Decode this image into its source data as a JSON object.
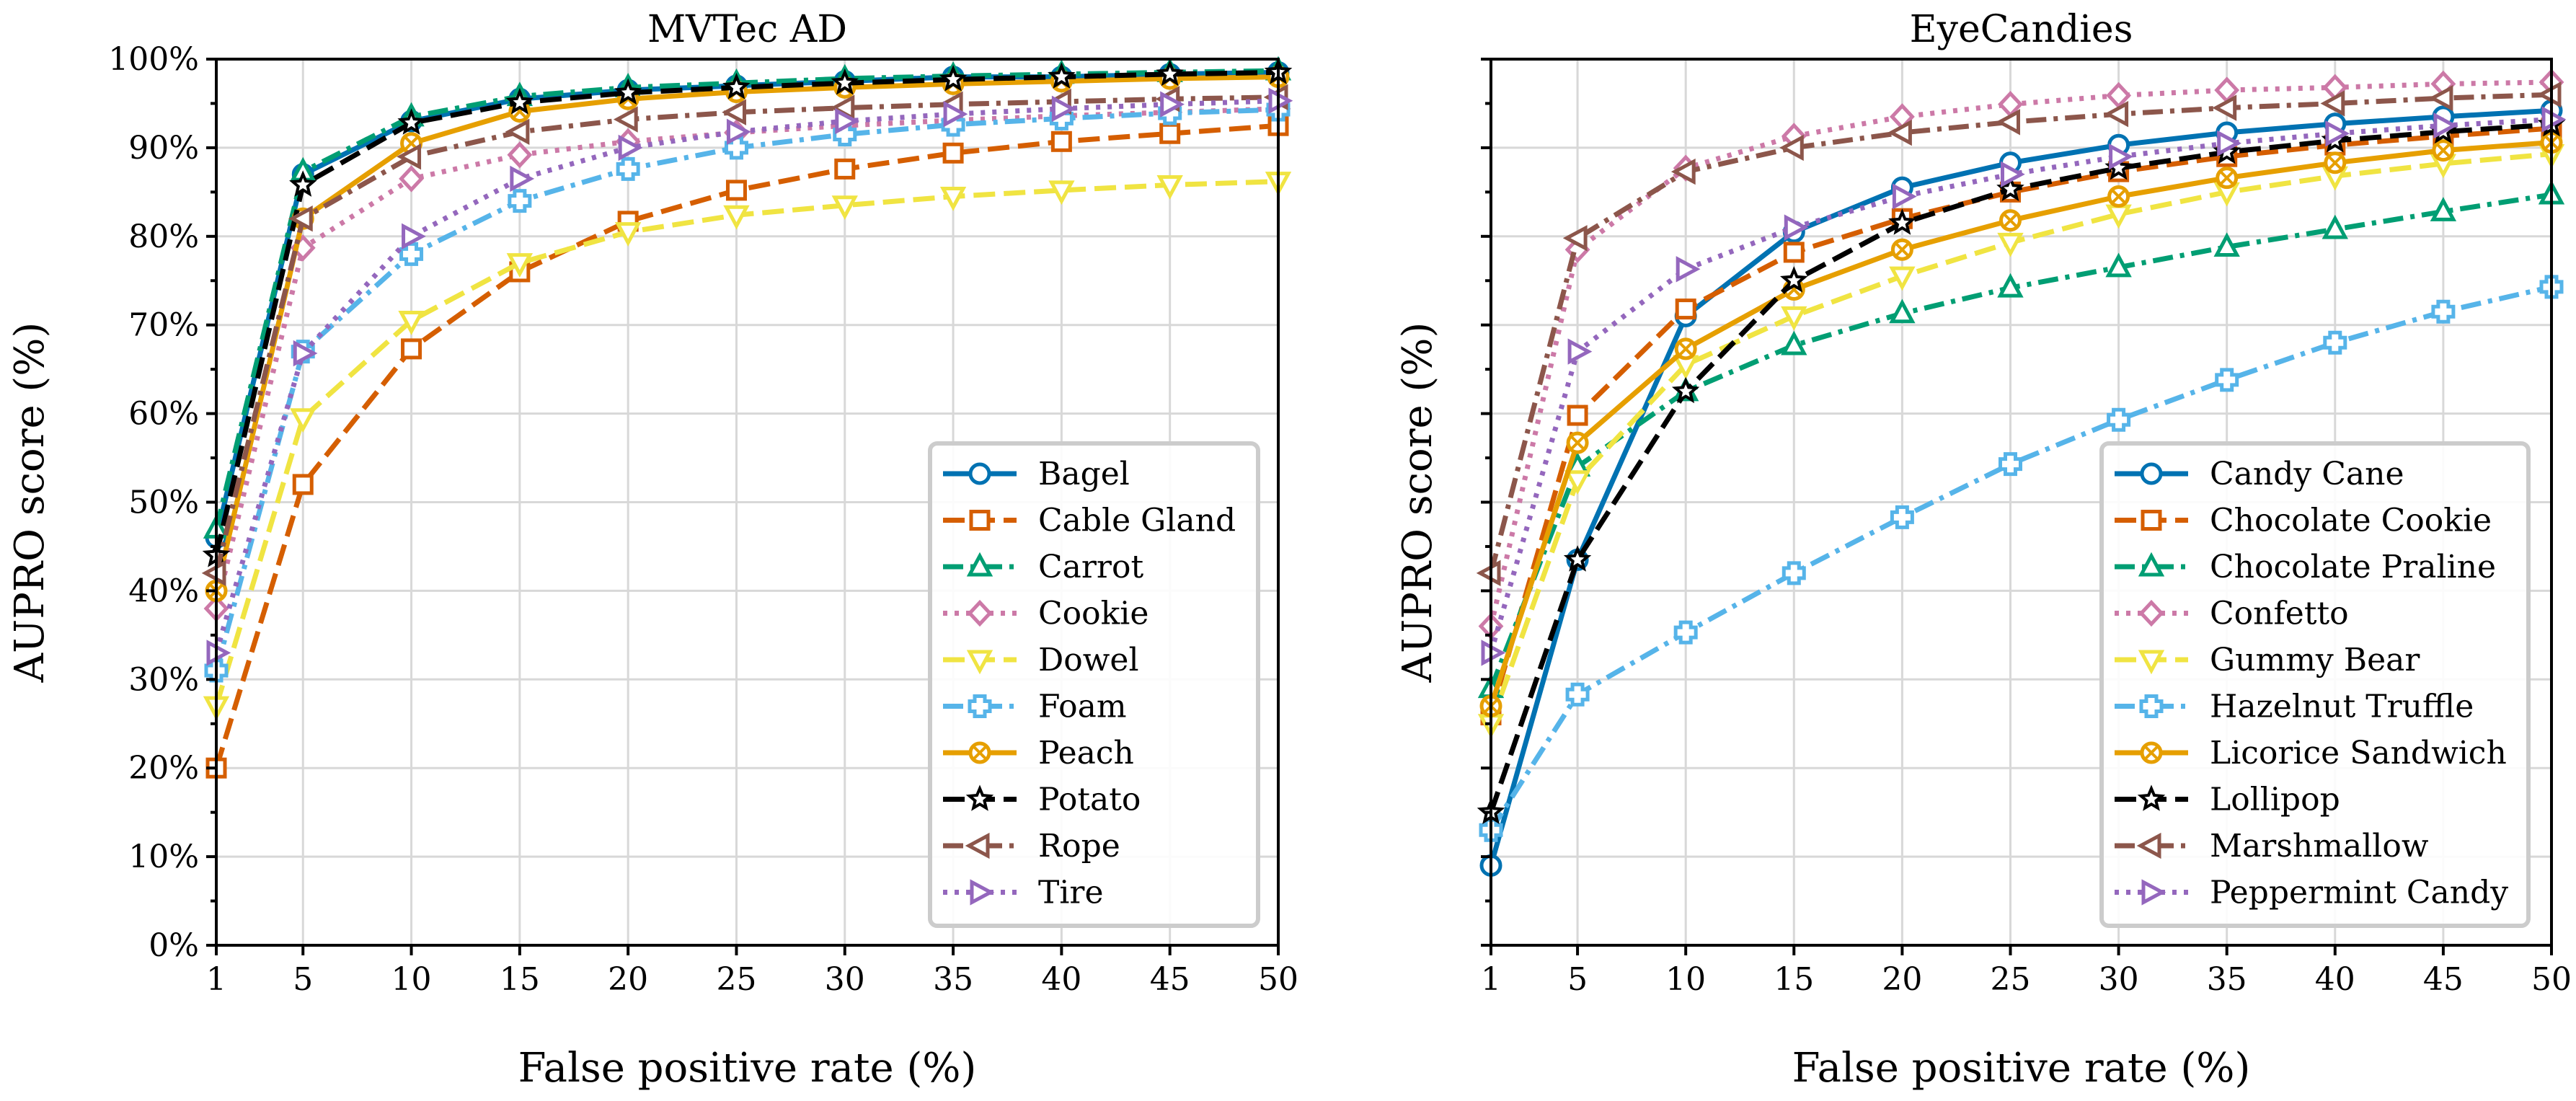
{
  "chart_data": [
    {
      "type": "line",
      "title": "MVTec AD",
      "xlabel": "False positive rate (%)",
      "ylabel": "AUPRO score (%)",
      "xlim": [
        1,
        50
      ],
      "ylim": [
        0,
        100
      ],
      "x_ticks": [
        1,
        5,
        10,
        15,
        20,
        25,
        30,
        35,
        40,
        45,
        50
      ],
      "y_ticks": [
        0,
        10,
        20,
        30,
        40,
        50,
        60,
        70,
        80,
        90,
        100
      ],
      "y_tick_labels": [
        "0%",
        "10%",
        "20%",
        "30%",
        "40%",
        "50%",
        "60%",
        "70%",
        "80%",
        "90%",
        "100%"
      ],
      "grid": true,
      "legend_position": "bottom-right",
      "x": [
        1,
        5,
        10,
        15,
        20,
        25,
        30,
        35,
        40,
        45,
        50
      ],
      "series": [
        {
          "name": "Bagel",
          "values": [
            46,
            87,
            93,
            95.5,
            96.5,
            97,
            97.5,
            98,
            98,
            98.3,
            98.5
          ],
          "color": "#0072B2",
          "dash": "solid",
          "marker": "circle"
        },
        {
          "name": "Cable Gland",
          "values": [
            20,
            52,
            67.3,
            76,
            81.7,
            85.2,
            87.6,
            89.4,
            90.7,
            91.6,
            92.5
          ],
          "color": "#D55E00",
          "dash": "dash",
          "marker": "square"
        },
        {
          "name": "Carrot",
          "values": [
            47,
            87.3,
            93.5,
            95.8,
            96.8,
            97.3,
            97.8,
            98.1,
            98.3,
            98.5,
            98.7
          ],
          "color": "#009E73",
          "dash": "dashdot",
          "marker": "triangle-up"
        },
        {
          "name": "Cookie",
          "values": [
            38,
            78.7,
            86.5,
            89.2,
            90.7,
            91.7,
            92.5,
            93.1,
            93.6,
            94,
            94.4
          ],
          "color": "#CC79A7",
          "dash": "dot",
          "marker": "diamond"
        },
        {
          "name": "Dowel",
          "values": [
            27,
            59.5,
            70.5,
            77,
            80.5,
            82.4,
            83.5,
            84.5,
            85.2,
            85.8,
            86.2
          ],
          "color": "#F0E442",
          "dash": "dash",
          "marker": "triangle-down"
        },
        {
          "name": "Foam",
          "values": [
            31,
            67,
            78,
            84,
            87.6,
            90,
            91.5,
            92.6,
            93.3,
            93.9,
            94.3
          ],
          "color": "#56B4E9",
          "dash": "dashdot",
          "marker": "plus"
        },
        {
          "name": "Peach",
          "values": [
            40,
            82,
            90.5,
            94.1,
            95.5,
            96.3,
            96.8,
            97.2,
            97.5,
            97.8,
            98
          ],
          "color": "#E69F00",
          "dash": "solid",
          "marker": "x-circle"
        },
        {
          "name": "Potato",
          "values": [
            44,
            85.8,
            92.8,
            95.1,
            96.2,
            96.8,
            97.3,
            97.7,
            98,
            98.3,
            98.5
          ],
          "color": "#000000",
          "dash": "dash",
          "marker": "star"
        },
        {
          "name": "Rope",
          "values": [
            42,
            82,
            89,
            91.8,
            93.2,
            94,
            94.5,
            94.9,
            95.2,
            95.5,
            95.7
          ],
          "color": "#8C564B",
          "dash": "dashdot",
          "marker": "triangle-left"
        },
        {
          "name": "Tire",
          "values": [
            33,
            66.8,
            80,
            86.5,
            90,
            91.8,
            93,
            93.8,
            94.4,
            94.9,
            95.3
          ],
          "color": "#9467BD",
          "dash": "dot",
          "marker": "triangle-right"
        }
      ]
    },
    {
      "type": "line",
      "title": "EyeCandies",
      "xlabel": "False positive rate (%)",
      "ylabel": "AUPRO score (%)",
      "xlim": [
        1,
        50
      ],
      "ylim": [
        0,
        100
      ],
      "x_ticks": [
        1,
        5,
        10,
        15,
        20,
        25,
        30,
        35,
        40,
        45,
        50
      ],
      "y_ticks": [
        0,
        10,
        20,
        30,
        40,
        50,
        60,
        70,
        80,
        90,
        100
      ],
      "grid": true,
      "legend_position": "bottom-right",
      "x": [
        1,
        5,
        10,
        15,
        20,
        25,
        30,
        35,
        40,
        45,
        50
      ],
      "series": [
        {
          "name": "Candy Cane",
          "values": [
            9,
            43.5,
            71,
            80.5,
            85.5,
            88.3,
            90.3,
            91.7,
            92.7,
            93.5,
            94.2
          ],
          "color": "#0072B2",
          "dash": "solid",
          "marker": "circle"
        },
        {
          "name": "Chocolate Cookie",
          "values": [
            26,
            59.8,
            71.8,
            78.2,
            82,
            85,
            87.3,
            89,
            90.3,
            91.3,
            92.2
          ],
          "color": "#D55E00",
          "dash": "dash",
          "marker": "square"
        },
        {
          "name": "Chocolate Praline",
          "values": [
            29,
            54,
            62.5,
            67.7,
            71.3,
            74.2,
            76.5,
            78.8,
            80.8,
            82.8,
            84.7
          ],
          "color": "#009E73",
          "dash": "dashdot",
          "marker": "triangle-up"
        },
        {
          "name": "Confetto",
          "values": [
            36,
            78.5,
            87.7,
            91.3,
            93.5,
            94.9,
            95.9,
            96.5,
            96.8,
            97.2,
            97.4
          ],
          "color": "#CC79A7",
          "dash": "dot",
          "marker": "diamond"
        },
        {
          "name": "Gummy Bear",
          "values": [
            25,
            52.5,
            65.5,
            71,
            75.5,
            79.3,
            82.5,
            85,
            86.8,
            88.2,
            89.3
          ],
          "color": "#F0E442",
          "dash": "dash",
          "marker": "triangle-down"
        },
        {
          "name": "Hazelnut Truffle",
          "values": [
            13,
            28.3,
            35.3,
            42,
            48.3,
            54.3,
            59.3,
            63.8,
            68,
            71.5,
            74.3
          ],
          "color": "#56B4E9",
          "dash": "dashdot",
          "marker": "plus"
        },
        {
          "name": "Licorice Sandwich",
          "values": [
            27,
            56.7,
            67.3,
            74,
            78.5,
            81.8,
            84.5,
            86.6,
            88.3,
            89.7,
            90.6
          ],
          "color": "#E69F00",
          "dash": "solid",
          "marker": "x-circle"
        },
        {
          "name": "Lollipop",
          "values": [
            15,
            43.5,
            62.5,
            75,
            81.5,
            85.3,
            87.7,
            89.5,
            90.8,
            91.8,
            92.6
          ],
          "color": "#000000",
          "dash": "dash",
          "marker": "star"
        },
        {
          "name": "Marshmallow",
          "values": [
            42,
            79.8,
            87.3,
            90,
            91.7,
            92.9,
            93.8,
            94.5,
            95,
            95.6,
            96
          ],
          "color": "#8C564B",
          "dash": "dashdot",
          "marker": "triangle-left"
        },
        {
          "name": "Peppermint Candy",
          "values": [
            33,
            67,
            76.3,
            81,
            84.5,
            87,
            89,
            90.5,
            91.6,
            92.5,
            93.2
          ],
          "color": "#9467BD",
          "dash": "dot",
          "marker": "triangle-right"
        }
      ]
    }
  ]
}
